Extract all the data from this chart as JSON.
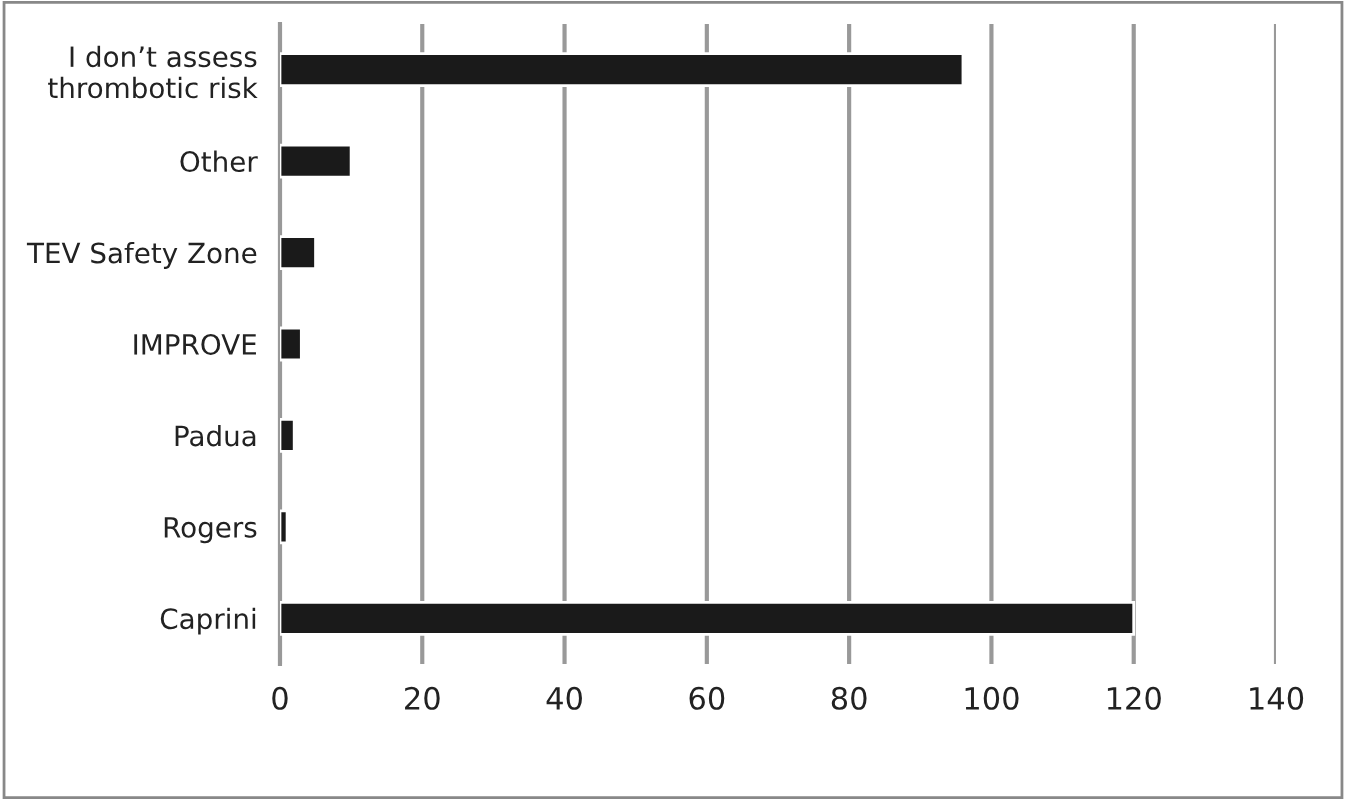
{
  "chart_data": {
    "type": "bar",
    "orientation": "horizontal",
    "categories": [
      "I don’t assess thrombotic risk",
      "Other",
      "TEV Safety Zone",
      "IMPROVE",
      "Padua",
      "Rogers",
      "Caprini"
    ],
    "values": [
      96,
      10,
      5,
      3,
      2,
      1,
      120
    ],
    "color": "#1a1a1a",
    "xlim": [
      0,
      140
    ],
    "xticks": [
      0,
      20,
      40,
      60,
      80,
      100,
      120,
      140
    ],
    "grid": "x"
  }
}
